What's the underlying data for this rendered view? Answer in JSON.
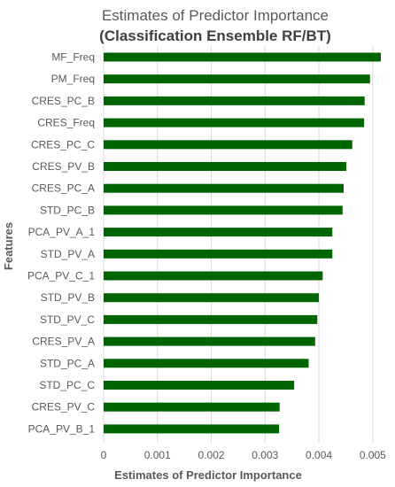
{
  "chart_data": {
    "type": "bar",
    "orientation": "horizontal",
    "title": "Estimates of Predictor Importance",
    "subtitle": "(Classification Ensemble RF/BT)",
    "xlabel": "Estimates of Predictor Importance",
    "ylabel": "Features",
    "categories": [
      "MF_Freq",
      "PM_Freq",
      "CRES_PC_B",
      "CRES_Freq",
      "CRES_PC_C",
      "CRES_PV_B",
      "CRES_PC_A",
      "STD_PC_B",
      "PCA_PV_A_1",
      "STD_PV_A",
      "PCA_PV_C_1",
      "STD_PV_B",
      "STD_PV_C",
      "CRES_PV_A",
      "STD_PC_A",
      "STD_PC_C",
      "CRES_PV_C",
      "PCA_PV_B_1"
    ],
    "values": [
      0.00515,
      0.00495,
      0.00485,
      0.00484,
      0.00462,
      0.00451,
      0.00446,
      0.00444,
      0.00425,
      0.00425,
      0.00407,
      0.004,
      0.00397,
      0.00393,
      0.00381,
      0.00354,
      0.00327,
      0.00326
    ],
    "xlim": [
      0,
      0.0052
    ],
    "xticks": [
      "0",
      "0.001",
      "0.002",
      "0.003",
      "0.004",
      "0.005"
    ],
    "xtick_values": [
      0,
      0.001,
      0.002,
      0.003,
      0.004,
      0.005
    ],
    "grid": "vertical",
    "bar_color": "#006400"
  }
}
